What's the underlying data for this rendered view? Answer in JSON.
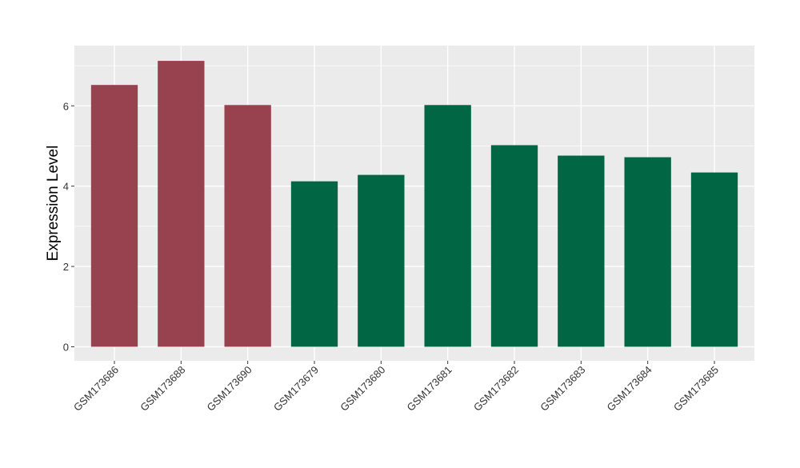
{
  "chart_data": {
    "type": "bar",
    "categories": [
      "GSM173686",
      "GSM173688",
      "GSM173690",
      "GSM173679",
      "GSM173680",
      "GSM173681",
      "GSM173682",
      "GSM173683",
      "GSM173684",
      "GSM173685"
    ],
    "values": [
      6.52,
      7.12,
      6.02,
      4.12,
      4.28,
      6.02,
      5.02,
      4.76,
      4.72,
      4.34
    ],
    "bar_colors": [
      "#99424F",
      "#99424F",
      "#99424F",
      "#006644",
      "#006644",
      "#006644",
      "#006644",
      "#006644",
      "#006644",
      "#006644"
    ],
    "ylabel": "Expression Level",
    "xlabel": "",
    "ylim": [
      -0.35,
      7.5
    ],
    "yticks": [
      0,
      2,
      4,
      6
    ],
    "ytick_labels": [
      "0",
      "2",
      "4",
      "6"
    ],
    "grid": true,
    "legend": "none",
    "panel_background": "#EBEBEB",
    "grid_color": "#FFFFFF"
  }
}
